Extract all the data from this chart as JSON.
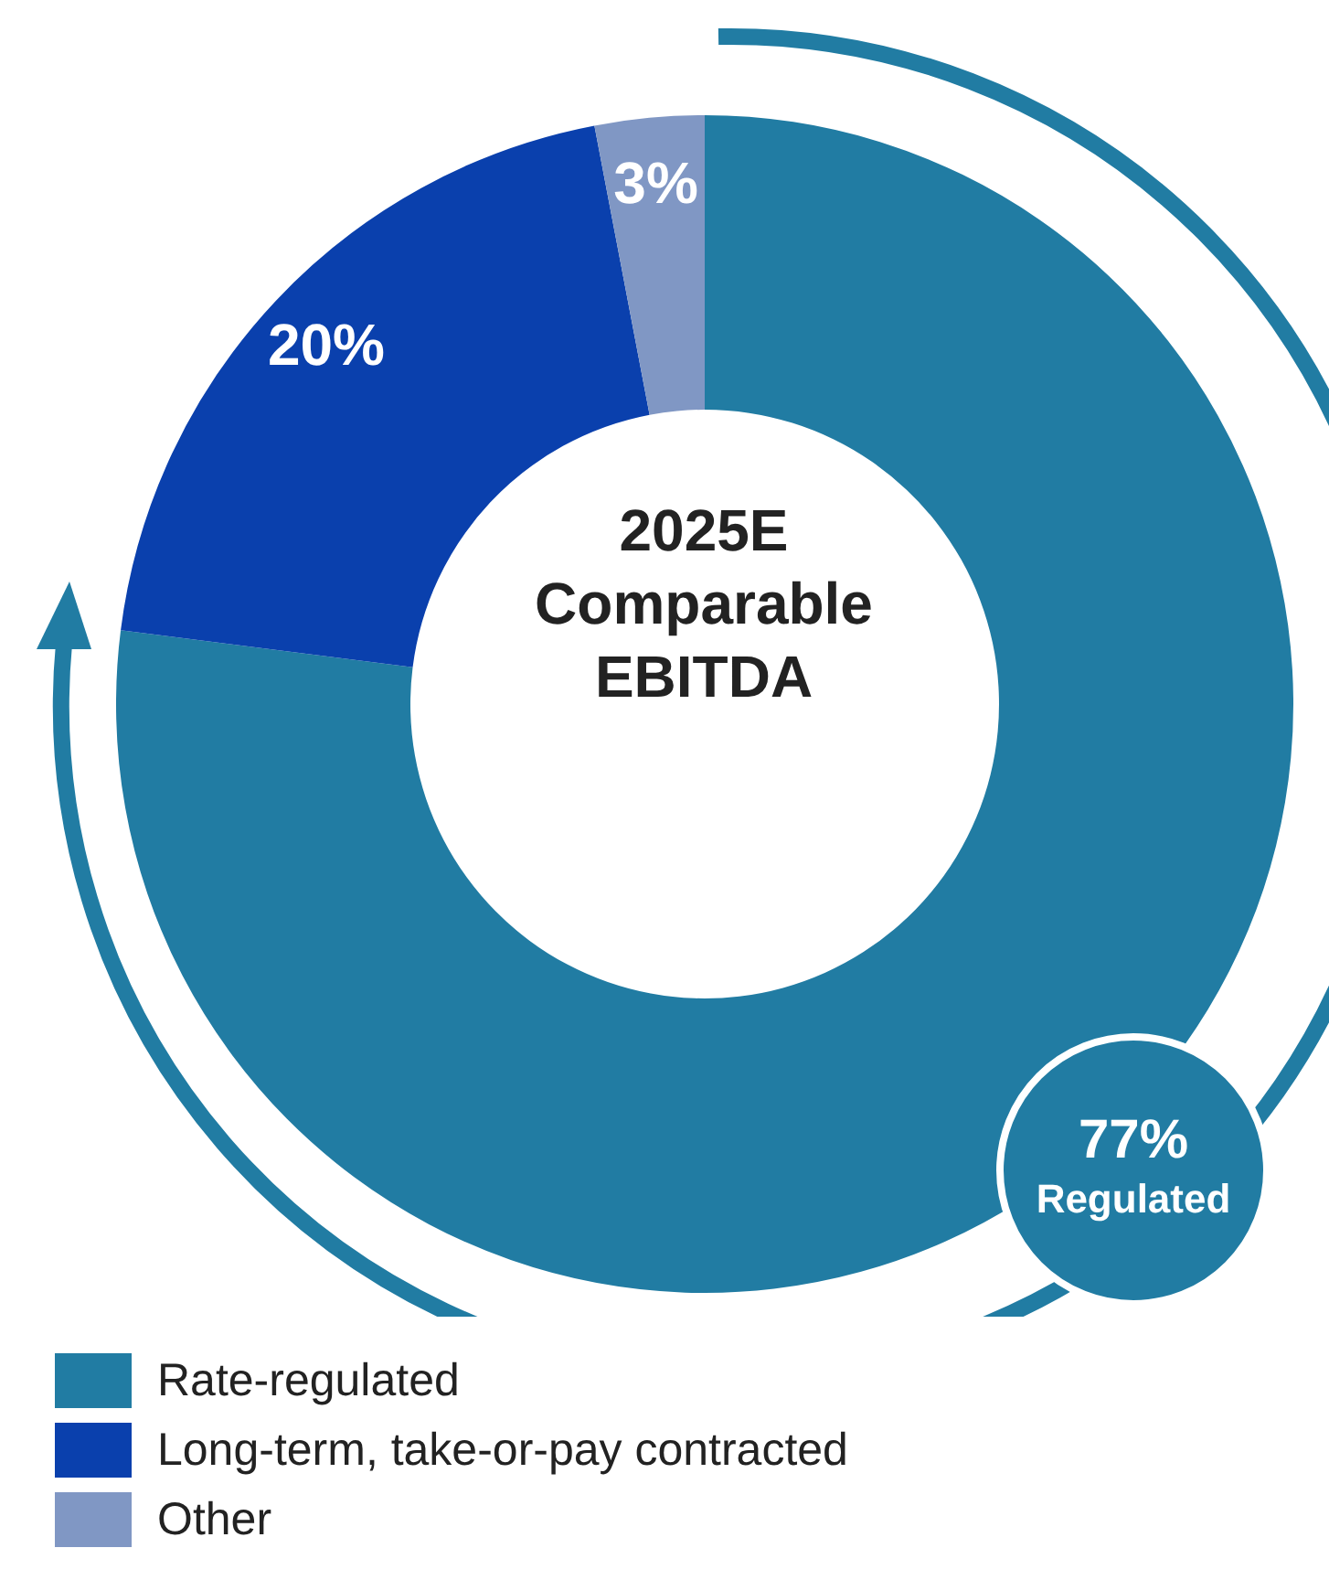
{
  "chart_data": {
    "type": "donut",
    "title": "2025E Comparable EBITDA",
    "categories": [
      "Rate-regulated",
      "Long-term, take-or-pay contracted",
      "Other"
    ],
    "values": [
      77,
      20,
      3
    ],
    "colors": [
      "#217ca3",
      "#0a40ad",
      "#8097c4"
    ],
    "value_labels": [
      null,
      "20%",
      "3%"
    ],
    "annotations": [
      "77% Regulated"
    ],
    "legend": "bottom left"
  }
}
